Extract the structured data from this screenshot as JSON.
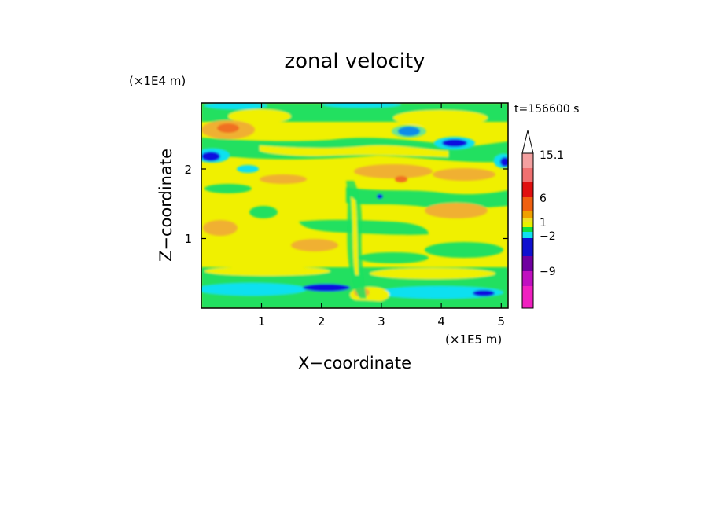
{
  "chart_data": {
    "type": "heatmap",
    "title": "zonal velocity",
    "xlabel": "X−coordinate",
    "ylabel": "Z−coordinate",
    "x_unit": "(×1E5 m)",
    "y_unit": "(×1E4 m)",
    "time_label": "t=156600 s",
    "x_ticks": [
      "1",
      "2",
      "3",
      "4",
      "5"
    ],
    "y_ticks": [
      "1",
      "2"
    ],
    "xlim": [
      0,
      5.12
    ],
    "ylim": [
      0,
      2.95
    ],
    "colorbar": {
      "labels": [
        "15.1",
        "6",
        "1",
        "−2",
        "−9"
      ],
      "colors": [
        "#f4a0a0",
        "#f07070",
        "#e01010",
        "#f06010",
        "#f0a000",
        "#f0e020",
        "#e8f000",
        "#10e040",
        "#10e0f0",
        "#1010d0",
        "#7000a0",
        "#c010c0",
        "#f020c0"
      ]
    },
    "colors": {
      "yellow": "#f0f000",
      "light-yellow": "#f4ef7a",
      "orange": "#f0b030",
      "dark-orange": "#f07020",
      "green": "#20e060",
      "cyan": "#10e0f0",
      "blue": "#1010e0"
    }
  }
}
